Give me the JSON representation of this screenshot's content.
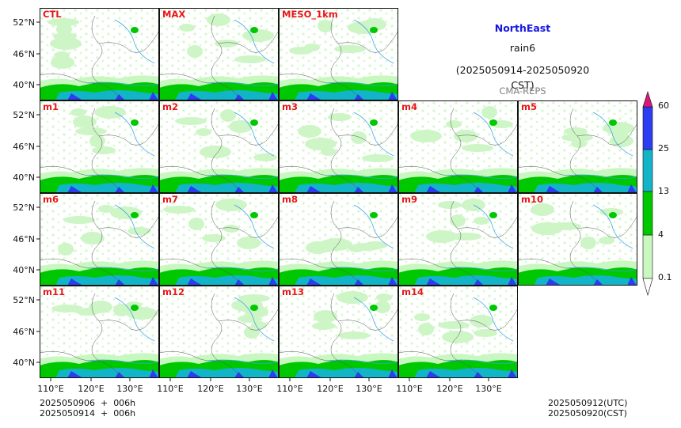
{
  "title": {
    "region": "NorthEast",
    "variable": "rain6",
    "period": "(2025050914-2025050920 CST)",
    "model": "CMA-REPS"
  },
  "colors": {
    "region_title": "#1717e6",
    "panel_label": "#e8161a",
    "model_text": "#808080"
  },
  "panel_rows": [
    [
      "CTL",
      "MAX",
      "MESO_1km"
    ],
    [
      "m1",
      "m2",
      "m3",
      "m4",
      "m5"
    ],
    [
      "m6",
      "m7",
      "m8",
      "m9",
      "m10"
    ],
    [
      "m11",
      "m12",
      "m13",
      "m14"
    ]
  ],
  "lat_ticks": [
    "52°N",
    "46°N",
    "40°N"
  ],
  "lon_ticks": [
    "110°E",
    "120°E",
    "130°E"
  ],
  "colorbar": {
    "levels": [
      "0.1",
      "4",
      "13",
      "25",
      "60"
    ],
    "colors": [
      "#ffffff",
      "#c8f7c0",
      "#00c800",
      "#12b4c8",
      "#2c3cf0",
      "#d8197a"
    ]
  },
  "footer_left": {
    "line1": "2025050906  +  006h",
    "line2": "2025050914  +  006h"
  },
  "footer_right": {
    "line1": "2025050912(UTC)",
    "line2": "2025050920(CST)"
  }
}
